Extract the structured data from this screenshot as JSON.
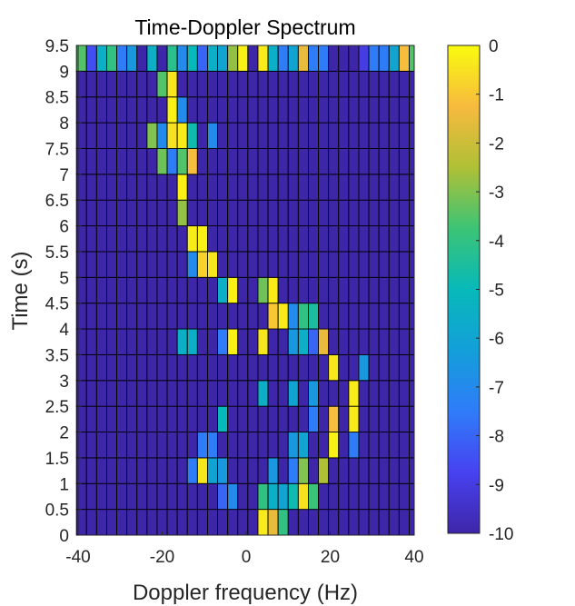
{
  "chart_data": {
    "type": "heatmap",
    "title": "Time-Doppler Spectrum",
    "xlabel": "Doppler frequency (Hz)",
    "ylabel": "Time (s)",
    "xlim": [
      -40,
      40
    ],
    "ylim": [
      0,
      9.5
    ],
    "x_ticks": [
      -40,
      -20,
      0,
      20,
      40
    ],
    "y_ticks": [
      0,
      0.5,
      1,
      1.5,
      2,
      2.5,
      3,
      3.5,
      4,
      4.5,
      5,
      5.5,
      6,
      6.5,
      7,
      7.5,
      8,
      8.5,
      9,
      9.5
    ],
    "x_tick_labels": [
      "-40",
      "-20",
      "0",
      "20",
      "40"
    ],
    "y_tick_labels": [
      "0",
      "0.5",
      "1",
      "1.5",
      "2",
      "2.5",
      "3",
      "3.5",
      "4",
      "4.5",
      "5",
      "5.5",
      "6",
      "6.5",
      "7",
      "7.5",
      "8",
      "8.5",
      "9",
      "9.5"
    ],
    "colorbar": {
      "min": -10,
      "max": 0,
      "ticks": [
        0,
        -1,
        -2,
        -3,
        -4,
        -5,
        -6,
        -7,
        -8,
        -9,
        -10
      ],
      "tick_labels": [
        "0",
        "-1",
        "-2",
        "-3",
        "-4",
        "-5",
        "-6",
        "-7",
        "-8",
        "-9",
        "-10"
      ]
    },
    "colormap": "parula",
    "grid": "cell edges",
    "cells": {
      "x_centers_hz": [
        -39.2,
        -36.8,
        -34.4,
        -32,
        -29.6,
        -27.2,
        -24.8,
        -22.4,
        -20,
        -17.6,
        -15.2,
        -12.8,
        -10.4,
        -8,
        -5.6,
        -3.2,
        -0.8,
        1.6,
        4,
        6.4,
        8.8,
        11.2,
        13.6,
        16,
        18.4,
        20.8,
        23.2,
        25.6,
        28,
        30.4,
        32.8,
        35.2,
        37.6,
        40
      ],
      "time_rows_s": [
        0,
        0.5,
        1,
        1.5,
        2,
        2.5,
        3,
        3.5,
        4,
        4.5,
        5,
        5.5,
        6,
        6.5,
        7,
        7.5,
        8,
        8.5,
        9
      ],
      "background_db": -10,
      "points": [
        {
          "f": 4.5,
          "t": 0,
          "db": -0.3
        },
        {
          "f": 7.0,
          "t": 0,
          "db": -1.5
        },
        {
          "f": 9.5,
          "t": 0,
          "db": -4.0
        },
        {
          "f": -6.0,
          "t": 0.5,
          "db": -8.0
        },
        {
          "f": -3.5,
          "t": 0.5,
          "db": -7.0
        },
        {
          "f": 4.5,
          "t": 0.5,
          "db": -4.0
        },
        {
          "f": 7.0,
          "t": 0.5,
          "db": -5.5
        },
        {
          "f": 9.5,
          "t": 0.5,
          "db": -6.0
        },
        {
          "f": 12.0,
          "t": 0.5,
          "db": -4.8
        },
        {
          "f": 14.5,
          "t": 0.5,
          "db": -0.5
        },
        {
          "f": 17.0,
          "t": 0.5,
          "db": -3.8
        },
        {
          "f": -13.5,
          "t": 1,
          "db": -7.5
        },
        {
          "f": -11.0,
          "t": 1,
          "db": -0.4
        },
        {
          "f": -8.5,
          "t": 1,
          "db": -6.0
        },
        {
          "f": -6.0,
          "t": 1,
          "db": -6.5
        },
        {
          "f": 7.0,
          "t": 1,
          "db": -6.5
        },
        {
          "f": 12.0,
          "t": 1,
          "db": -7.5
        },
        {
          "f": 14.5,
          "t": 1,
          "db": -3.0
        },
        {
          "f": 19.5,
          "t": 1,
          "db": -2.5
        },
        {
          "f": -11.0,
          "t": 1.5,
          "db": -7.5
        },
        {
          "f": -8.5,
          "t": 1.5,
          "db": -7.5
        },
        {
          "f": 12.0,
          "t": 1.5,
          "db": -6.5
        },
        {
          "f": 14.5,
          "t": 1.5,
          "db": -6.0
        },
        {
          "f": 22.0,
          "t": 1.5,
          "db": -0.2
        },
        {
          "f": 24.5,
          "t": 1.5,
          "db": -7.5
        },
        {
          "f": -6.0,
          "t": 2,
          "db": -5.0
        },
        {
          "f": 17.0,
          "t": 2,
          "db": -7.5
        },
        {
          "f": 22.0,
          "t": 2,
          "db": -1.2
        },
        {
          "f": 24.5,
          "t": 2,
          "db": -0.3
        },
        {
          "f": 4.5,
          "t": 2.5,
          "db": -5.5
        },
        {
          "f": 12.0,
          "t": 2.5,
          "db": -6.0
        },
        {
          "f": 17.0,
          "t": 2.5,
          "db": -6.5
        },
        {
          "f": 24.5,
          "t": 2.5,
          "db": -0.3
        },
        {
          "f": 22.0,
          "t": 3,
          "db": -0.4
        },
        {
          "f": 27.0,
          "t": 3,
          "db": -6.5
        },
        {
          "f": -16.0,
          "t": 3.5,
          "db": -5.5
        },
        {
          "f": -13.5,
          "t": 3.5,
          "db": -5.5
        },
        {
          "f": -6.0,
          "t": 3.5,
          "db": -7.5
        },
        {
          "f": -3.5,
          "t": 3.5,
          "db": -0.2
        },
        {
          "f": 4.5,
          "t": 3.5,
          "db": -0.4
        },
        {
          "f": 12.0,
          "t": 3.5,
          "db": -6.5
        },
        {
          "f": 14.5,
          "t": 3.5,
          "db": -5.5
        },
        {
          "f": 17.0,
          "t": 3.5,
          "db": -8.0
        },
        {
          "f": 19.5,
          "t": 3.5,
          "db": -1.5
        },
        {
          "f": 7.0,
          "t": 4,
          "db": -1.0
        },
        {
          "f": 9.5,
          "t": 4,
          "db": -0.3
        },
        {
          "f": 12.0,
          "t": 4,
          "db": -7.0
        },
        {
          "f": 14.5,
          "t": 4,
          "db": -4.0
        },
        {
          "f": 17.0,
          "t": 4,
          "db": -4.5
        },
        {
          "f": -6.0,
          "t": 4.5,
          "db": -5.5
        },
        {
          "f": -3.5,
          "t": 4.5,
          "db": -0.2
        },
        {
          "f": 4.5,
          "t": 4.5,
          "db": -3.2
        },
        {
          "f": 7.0,
          "t": 4.5,
          "db": -0.3
        },
        {
          "f": -13.5,
          "t": 5,
          "db": -7.0
        },
        {
          "f": -11.0,
          "t": 5,
          "db": -0.8
        },
        {
          "f": -8.5,
          "t": 5,
          "db": -0.4
        },
        {
          "f": -13.5,
          "t": 5.5,
          "db": -0.3
        },
        {
          "f": -11.0,
          "t": 5.5,
          "db": -0.2
        },
        {
          "f": -16.0,
          "t": 6,
          "db": -2.8
        },
        {
          "f": -16.0,
          "t": 6.5,
          "db": -0.2
        },
        {
          "f": -21.0,
          "t": 7,
          "db": -3.2
        },
        {
          "f": -18.5,
          "t": 7,
          "db": -7.5
        },
        {
          "f": -16.0,
          "t": 7,
          "db": -3.5
        },
        {
          "f": -13.5,
          "t": 7,
          "db": -1.2
        },
        {
          "f": -23.5,
          "t": 7.5,
          "db": -3.0
        },
        {
          "f": -21.0,
          "t": 7.5,
          "db": -7.0
        },
        {
          "f": -18.5,
          "t": 7.5,
          "db": -0.5
        },
        {
          "f": -16.0,
          "t": 7.5,
          "db": -0.3
        },
        {
          "f": -13.5,
          "t": 7.5,
          "db": -4.8
        },
        {
          "f": -8.5,
          "t": 7.5,
          "db": -7.0
        },
        {
          "f": -18.5,
          "t": 8,
          "db": -0.2
        },
        {
          "f": -16.0,
          "t": 8,
          "db": -7.0
        },
        {
          "f": -21.0,
          "t": 8.5,
          "db": -3.5
        },
        {
          "f": -18.5,
          "t": 8.5,
          "db": -0.4
        },
        {
          "f": -38.5,
          "t": 9,
          "db": -3.5
        },
        {
          "f": -36.0,
          "t": 9,
          "db": -8.5
        },
        {
          "f": -33.5,
          "t": 9,
          "db": -5.5
        },
        {
          "f": -31.0,
          "t": 9,
          "db": -4.0
        },
        {
          "f": -26.0,
          "t": 9,
          "db": -1.0
        },
        {
          "f": -23.5,
          "t": 9,
          "db": -5.5
        },
        {
          "f": -18.5,
          "t": 9,
          "db": -4.2
        },
        {
          "f": -16.0,
          "t": 9,
          "db": -6.5
        },
        {
          "f": -13.5,
          "t": 9,
          "db": -5.0
        },
        {
          "f": 7.0,
          "t": 9,
          "db": -1.0
        },
        {
          "f": 12.0,
          "t": 9,
          "db": -3.5
        },
        {
          "f": 17.0,
          "t": 9,
          "db": -7.5
        },
        {
          "f": 19.5,
          "t": 9,
          "db": -4.5
        },
        {
          "f": 27.0,
          "t": 9,
          "db": -9.0
        },
        {
          "f": 29.5,
          "t": 9,
          "db": -0.6
        },
        {
          "f": 32.0,
          "t": 9,
          "db": -7.5
        },
        {
          "f": 34.5,
          "t": 9,
          "db": -6.0
        },
        {
          "f": 37.0,
          "t": 9,
          "db": -1.2
        },
        {
          "f": 39.5,
          "t": 9,
          "db": -3.5
        },
        {
          "f": -36.0,
          "t": 9.5,
          "db": -8.5
        },
        {
          "f": -28.5,
          "t": 9.5,
          "db": -7.5
        },
        {
          "f": -26.0,
          "t": 9.5,
          "db": -6.5
        },
        {
          "f": -16.0,
          "t": 9.5,
          "db": -7.0
        },
        {
          "f": -11.0,
          "t": 9.5,
          "db": -8.0
        },
        {
          "f": -8.5,
          "t": 9.5,
          "db": -5.5
        },
        {
          "f": -6.0,
          "t": 9.5,
          "db": -6.0
        },
        {
          "f": -3.5,
          "t": 9.5,
          "db": -2.8
        },
        {
          "f": -1.0,
          "t": 9.5,
          "db": -0.2
        },
        {
          "f": 4.5,
          "t": 9.5,
          "db": -0.3
        },
        {
          "f": 7.0,
          "t": 9.5,
          "db": -5.5
        },
        {
          "f": 9.5,
          "t": 9.5,
          "db": -7.5
        },
        {
          "f": 12.0,
          "t": 9.5,
          "db": -6.0
        },
        {
          "f": 14.5,
          "t": 9.5,
          "db": -1.5
        },
        {
          "f": 19.5,
          "t": 9.5,
          "db": -7.5
        },
        {
          "f": 29.5,
          "t": 9.5,
          "db": -7.5
        }
      ]
    }
  }
}
